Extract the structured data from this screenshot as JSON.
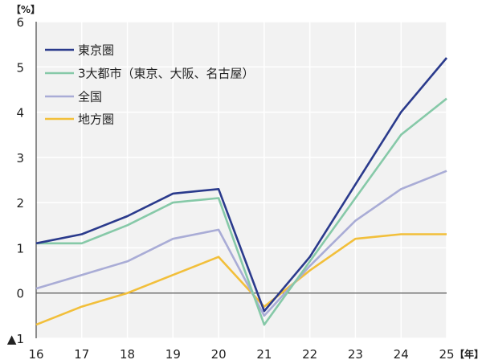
{
  "chart_data": {
    "type": "line",
    "title": "",
    "xlabel": "年",
    "ylabel": "%",
    "x_unit_label": "【年】",
    "y_unit_label": "【%】",
    "categories": [
      "16",
      "17",
      "18",
      "19",
      "20",
      "21",
      "22",
      "23",
      "24",
      "25"
    ],
    "ylim": [
      -1,
      6
    ],
    "yticks": [
      6,
      5,
      4,
      3,
      2,
      1,
      0,
      -1
    ],
    "ytick_labels": [
      "6",
      "5",
      "4",
      "3",
      "2",
      "1",
      "0",
      "▲1"
    ],
    "grid": true,
    "legend_position": "upper-left",
    "series": [
      {
        "name": "東京圏",
        "color": "#2a3a8c",
        "values": [
          1.1,
          1.3,
          1.7,
          2.2,
          2.3,
          -0.4,
          0.8,
          2.4,
          4.0,
          5.2
        ]
      },
      {
        "name": "3大都市（東京、大阪、名古屋）",
        "color": "#86c9a8",
        "values": [
          1.1,
          1.1,
          1.5,
          2.0,
          2.1,
          -0.7,
          0.7,
          2.1,
          3.5,
          4.3
        ]
      },
      {
        "name": "全国",
        "color": "#a9acd6",
        "values": [
          0.1,
          0.4,
          0.7,
          1.2,
          1.4,
          -0.5,
          0.6,
          1.6,
          2.3,
          2.7
        ]
      },
      {
        "name": "地方圏",
        "color": "#f2bf3a",
        "values": [
          -0.7,
          -0.3,
          0.0,
          0.4,
          0.8,
          -0.3,
          0.5,
          1.2,
          1.3,
          1.3
        ]
      }
    ]
  }
}
